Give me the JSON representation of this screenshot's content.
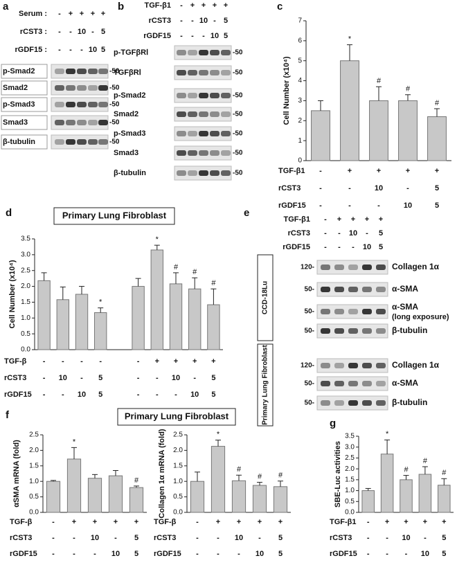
{
  "chart_data": [
    {
      "type": "bar",
      "label": "c",
      "ylabel": "Cell Number (x10⁴)",
      "ylim": [
        0,
        7
      ],
      "yticks": [
        0,
        1,
        2,
        3,
        4,
        5,
        6,
        7
      ],
      "values": [
        2.5,
        5.0,
        3.0,
        3.0,
        2.2
      ],
      "errors": [
        0.5,
        0.8,
        0.7,
        0.3,
        0.4
      ],
      "annotations": [
        null,
        "*",
        "#",
        "#",
        "#"
      ],
      "conditions": [
        {
          "label": "TGF-β1",
          "values": [
            "-",
            "+",
            "+",
            "+",
            "+"
          ]
        },
        {
          "label": "rCST3",
          "values": [
            "-",
            "-",
            "10",
            "-",
            "5"
          ]
        },
        {
          "label": "rGDF15",
          "values": [
            "-",
            "-",
            "-",
            "10",
            "5"
          ]
        }
      ]
    },
    {
      "type": "bar",
      "label": "d",
      "title": "Primary Lung  Fibroblast",
      "ylabel": "Cell Number (x10⁴)",
      "ylim": [
        0,
        3.5
      ],
      "yticks": [
        {
          "value": 0,
          "label": "0.0"
        },
        0.5,
        {
          "value": 1,
          "label": "1.0"
        },
        1.5,
        {
          "value": 2,
          "label": "2.0"
        },
        2.5,
        {
          "value": 3,
          "label": "3.0"
        },
        3.5
      ],
      "values": [
        2.18,
        1.58,
        1.75,
        1.17,
        2.0,
        3.15,
        2.08,
        1.92,
        1.42
      ],
      "errors": [
        0.25,
        0.4,
        0.25,
        0.15,
        0.25,
        0.15,
        0.35,
        0.35,
        0.5
      ],
      "annotations": [
        null,
        null,
        null,
        "*",
        null,
        "*",
        "#",
        "#",
        "#"
      ],
      "conditions": [
        {
          "label": "TGF-β",
          "values": [
            "-",
            "-",
            "-",
            "-",
            "-",
            "+",
            "+",
            "+",
            "+"
          ]
        },
        {
          "label": "rCST3",
          "values": [
            "-",
            "10",
            "-",
            "5",
            "-",
            "-",
            "10",
            "-",
            "5"
          ]
        },
        {
          "label": "rGDF15",
          "values": [
            "-",
            "-",
            "10",
            "5",
            "-",
            "-",
            "-",
            "10",
            "5"
          ]
        }
      ]
    },
    {
      "type": "bar",
      "label": "f",
      "title": "Primary Lung  Fibroblast",
      "ylabel": "αSMA mRNA (fold)",
      "ylim": [
        0,
        2.5
      ],
      "yticks": [
        {
          "value": 0,
          "label": "0.0"
        },
        0.5,
        {
          "value": 1,
          "label": "1.0"
        },
        1.5,
        {
          "value": 2,
          "label": "2.0"
        },
        2.5
      ],
      "values": [
        1.0,
        1.72,
        1.1,
        1.18,
        0.8
      ],
      "errors": [
        0.03,
        0.37,
        0.12,
        0.17,
        0.05
      ],
      "annotations": [
        null,
        "*",
        null,
        null,
        "#"
      ],
      "conditions": [
        {
          "label": "TGF-β",
          "values": [
            "-",
            "+",
            "+",
            "+",
            "+"
          ]
        },
        {
          "label": "rCST3",
          "values": [
            "-",
            "-",
            "10",
            "-",
            "5"
          ]
        },
        {
          "label": "rGDF15",
          "values": [
            "-",
            "-",
            "-",
            "10",
            "5"
          ]
        }
      ]
    },
    {
      "type": "bar",
      "ylabel": "Collagen 1α mRNA (fold)",
      "ylim": [
        0,
        2.5
      ],
      "yticks": [
        {
          "value": 0,
          "label": "0.0"
        },
        0.5,
        {
          "value": 1,
          "label": "1.0"
        },
        1.5,
        {
          "value": 2,
          "label": "2.0"
        },
        2.5
      ],
      "values": [
        1.0,
        2.13,
        1.02,
        0.87,
        0.83
      ],
      "errors": [
        0.3,
        0.2,
        0.18,
        0.1,
        0.18
      ],
      "annotations": [
        null,
        "*",
        "#",
        "#",
        "#"
      ],
      "conditions": [
        {
          "label": "TGF-β",
          "values": [
            "-",
            "+",
            "+",
            "+",
            "+"
          ]
        },
        {
          "label": "rCST3",
          "values": [
            "-",
            "-",
            "10",
            "-",
            "5"
          ]
        },
        {
          "label": "rGDF15",
          "values": [
            "-",
            "-",
            "-",
            "10",
            "5"
          ]
        }
      ]
    },
    {
      "type": "bar",
      "label": "g",
      "ylabel": "SBE-Luc activities",
      "ylim": [
        0,
        3.5
      ],
      "yticks": [
        {
          "value": 0,
          "label": "0.0"
        },
        0.5,
        {
          "value": 1,
          "label": "1.0"
        },
        1.5,
        {
          "value": 2,
          "label": "2.0"
        },
        2.5,
        {
          "value": 3,
          "label": "3.0"
        },
        3.5
      ],
      "values": [
        1.0,
        2.68,
        1.5,
        1.75,
        1.25
      ],
      "errors": [
        0.1,
        0.65,
        0.2,
        0.35,
        0.3
      ],
      "annotations": [
        null,
        "*",
        "#",
        "#",
        "#"
      ],
      "conditions": [
        {
          "label": "TGF-β1",
          "values": [
            "-",
            "+",
            "+",
            "+",
            "+"
          ]
        },
        {
          "label": "rCST3",
          "values": [
            "-",
            "-",
            "10",
            "-",
            "5"
          ]
        },
        {
          "label": "rGDF15",
          "values": [
            "-",
            "-",
            "-",
            "10",
            "5"
          ]
        }
      ]
    }
  ],
  "blots": [
    {
      "label": "a",
      "conditions": [
        {
          "label": "Serum :",
          "values": [
            "-",
            "+",
            "+",
            "+",
            "+"
          ]
        },
        {
          "label": "rCST3 :",
          "values": [
            "-",
            "-",
            "10",
            "-",
            "5"
          ]
        },
        {
          "label": "rGDF15 :",
          "values": [
            "-",
            "-",
            "-",
            "10",
            "5"
          ]
        }
      ],
      "groups": [
        {
          "rows": [
            {
              "name": "p-Smad2",
              "marker": "-50"
            },
            {
              "name": "Smad2",
              "marker": "-50"
            },
            {
              "name": "p-Smad3",
              "marker": "-50"
            },
            {
              "name": "Smad3",
              "marker": "-50"
            },
            {
              "name": "β-tubulin",
              "marker": "-50"
            }
          ]
        }
      ]
    },
    {
      "label": "b",
      "conditions": [
        {
          "label": "TGF-β1",
          "values": [
            "-",
            "+",
            "+",
            "+",
            "+"
          ]
        },
        {
          "label": "rCST3",
          "values": [
            "-",
            "-",
            "10",
            "-",
            "5"
          ]
        },
        {
          "label": "rGDF15",
          "values": [
            "-",
            "-",
            "-",
            "10",
            "5"
          ]
        }
      ],
      "groups": [
        {
          "rows": [
            {
              "name": "p-TGFβRⅠ",
              "marker": "-50"
            },
            {
              "name": "TGFβRⅠ",
              "marker": "-50"
            },
            {
              "name": "p-Smad2",
              "marker": "-50"
            },
            {
              "name": "Smad2",
              "marker": "-50"
            },
            {
              "name": "p-Smad3",
              "marker": "-50"
            },
            {
              "name": "Smad3",
              "marker": "-50"
            },
            {
              "name": "β-tubulin",
              "marker": "-50"
            }
          ]
        }
      ]
    },
    {
      "label": "e",
      "conditions": [
        {
          "label": "TGF-β1",
          "values": [
            "-",
            "+",
            "+",
            "+",
            "+"
          ]
        },
        {
          "label": "rCST3",
          "values": [
            "-",
            "-",
            "10",
            "-",
            "5"
          ]
        },
        {
          "label": "rGDF15",
          "values": [
            "-",
            "-",
            "-",
            "10",
            "5"
          ]
        }
      ],
      "groups": [
        {
          "name": "CCD-18Lu",
          "rows": [
            {
              "name": "Collagen 1α",
              "marker": "120-"
            },
            {
              "name": "α-SMA",
              "marker": "50-"
            },
            {
              "name": "α-SMA",
              "note": "(long exposure)",
              "marker": "50-"
            },
            {
              "name": "β-tubulin",
              "marker": "50-"
            }
          ]
        },
        {
          "name": "Primary Lung Fibroblast",
          "rows": [
            {
              "name": "Collagen 1α",
              "marker": "120-"
            },
            {
              "name": "α-SMA",
              "marker": "50-"
            },
            {
              "name": "β-tubulin",
              "marker": "50-"
            }
          ]
        }
      ]
    }
  ]
}
